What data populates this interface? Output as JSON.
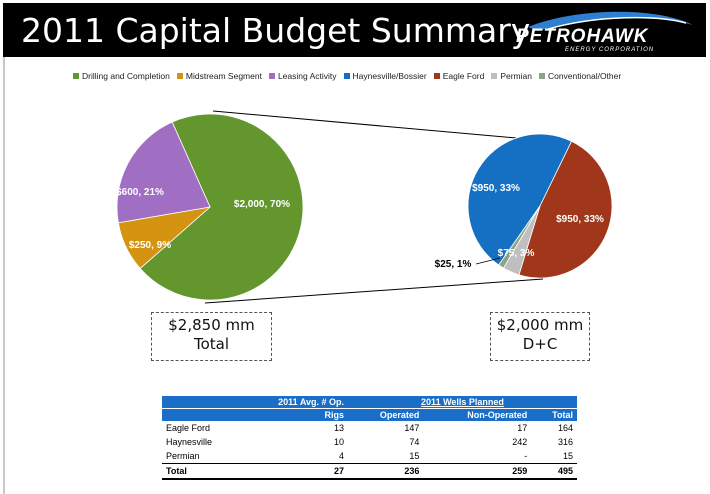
{
  "page": {
    "title": "2011 Capital Budget Summary",
    "logo_name": "PETROHAWK",
    "logo_sub": "ENERGY CORPORATION"
  },
  "chart_data": [
    {
      "type": "pie",
      "labels": [
        "Drilling and Completion",
        "Midstream Segment",
        "Leasing Activity"
      ],
      "values": [
        2000,
        250,
        600
      ],
      "percents": [
        70,
        9,
        21
      ],
      "data_labels": [
        "$2,000, 70%",
        "$250, 9%",
        "$600, 21%"
      ],
      "colors": [
        "#64962e",
        "#d59312",
        "#a06ec2"
      ],
      "total_box": {
        "line1": "$2,850 mm",
        "line2": "Total"
      }
    },
    {
      "type": "pie",
      "labels": [
        "Haynesville/Bossier",
        "Eagle Ford",
        "Permian",
        "Conventional/Other"
      ],
      "values": [
        950,
        950,
        75,
        25
      ],
      "percents": [
        33,
        33,
        3,
        1
      ],
      "data_labels": [
        "$950, 33%",
        "$950, 33%",
        "$75, 3%",
        "$25, 1%"
      ],
      "colors": [
        "#1570c4",
        "#a0361a",
        "#bfbfbf",
        "#8aa38a"
      ],
      "total_box": {
        "line1": "$2,000 mm",
        "line2": "D+C"
      }
    }
  ],
  "legend": [
    {
      "label": "Drilling and Completion",
      "color": "#64962e"
    },
    {
      "label": "Midstream Segment",
      "color": "#d59312"
    },
    {
      "label": "Leasing Activity",
      "color": "#a06ec2"
    },
    {
      "label": "Haynesville/Bossier",
      "color": "#1570c4"
    },
    {
      "label": "Eagle Ford",
      "color": "#a0361a"
    },
    {
      "label": "Permian",
      "color": "#bfbfbf"
    },
    {
      "label": "Conventional/Other",
      "color": "#8aa38a"
    }
  ],
  "table": {
    "header_rigs_line1": "2011 Avg. # Op.",
    "header_rigs_line2": "Rigs",
    "header_wells": "2011 Wells Planned",
    "col_operated": "Operated",
    "col_nonoperated": "Non-Operated",
    "col_total": "Total",
    "rows": [
      {
        "name": "Eagle Ford",
        "rigs": "13",
        "operated": "147",
        "nonoperated": "17",
        "total": "164"
      },
      {
        "name": "Haynesville",
        "rigs": "10",
        "operated": "74",
        "nonoperated": "242",
        "total": "316"
      },
      {
        "name": "Permian",
        "rigs": "4",
        "operated": "15",
        "nonoperated": "-",
        "total": "15"
      }
    ],
    "total_row": {
      "name": "Total",
      "rigs": "27",
      "operated": "236",
      "nonoperated": "259",
      "total": "495"
    }
  }
}
